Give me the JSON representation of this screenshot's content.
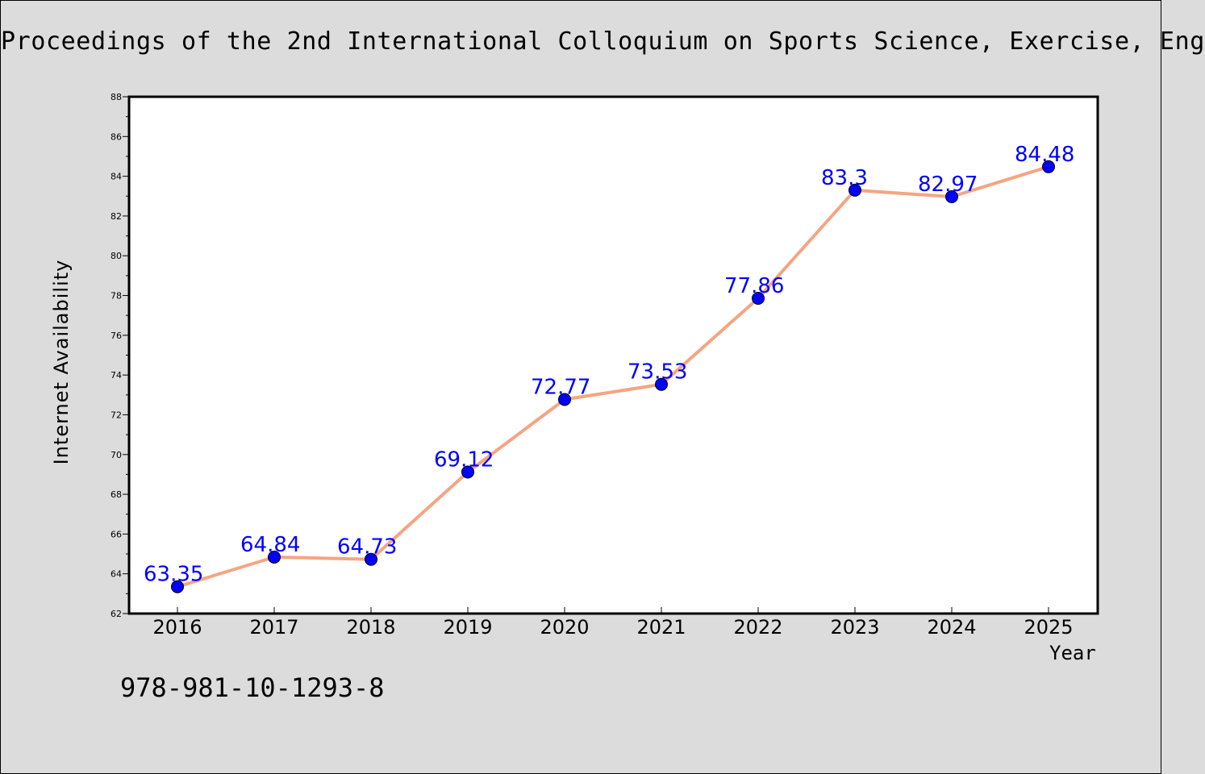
{
  "page": {
    "title": "Proceedings of the 2nd International Colloquium on Sports Science, Exercise, Eng",
    "isbn": "978-981-10-1293-8"
  },
  "chart_data": {
    "type": "line",
    "title": "",
    "xlabel": "Year",
    "ylabel": "Internet Availability",
    "categories": [
      "2016",
      "2017",
      "2018",
      "2019",
      "2020",
      "2021",
      "2022",
      "2023",
      "2024",
      "2025"
    ],
    "series": [
      {
        "values": [
          63.35,
          64.84,
          64.73,
          69.12,
          72.77,
          73.53,
          77.86,
          83.3,
          82.97,
          84.48
        ],
        "labels": [
          "63.35",
          "64.84",
          "64.73",
          "69.12",
          "72.77",
          "73.53",
          "77.86",
          "83.3",
          "82.97",
          "84.48"
        ],
        "line_color": "#f4a582",
        "marker_color": "#0000ff"
      }
    ],
    "ylim": [
      62,
      88
    ],
    "yticks": [
      "62",
      "64",
      "66",
      "68",
      "70",
      "72",
      "74",
      "76",
      "78",
      "80",
      "82",
      "84",
      "86",
      "88"
    ],
    "grid": false,
    "legend": "none",
    "label_color": "#0000ff"
  }
}
